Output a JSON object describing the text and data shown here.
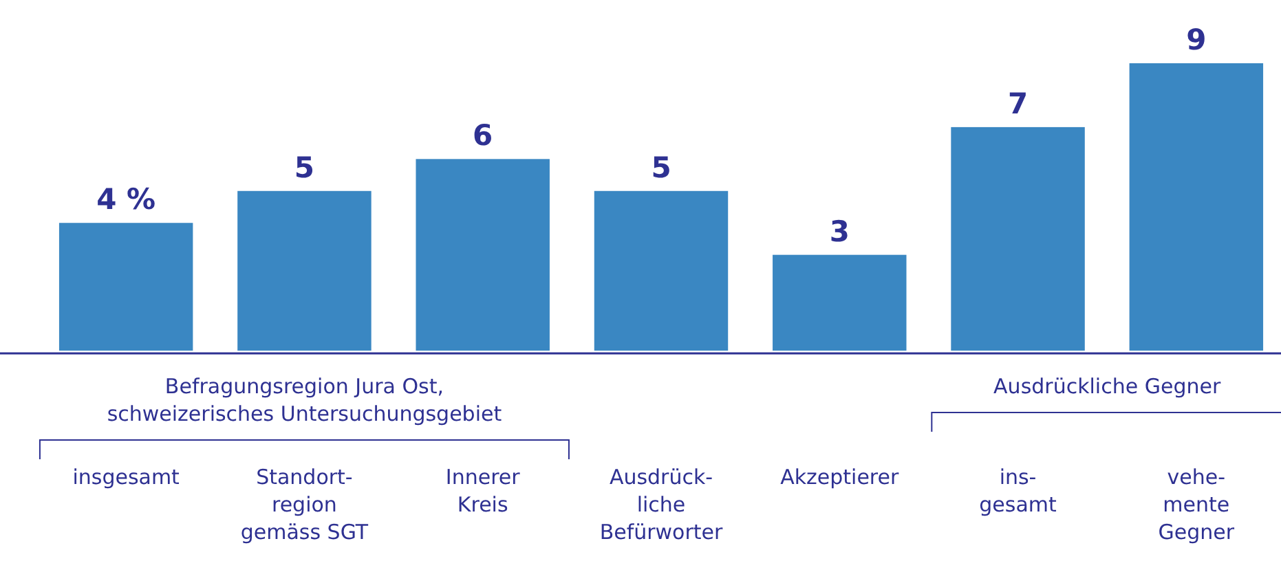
{
  "chart_data": {
    "type": "bar",
    "categories": [
      "insgesamt",
      "Standort-\nregion\ngemäss SGT",
      "Innerer\nKreis",
      "Ausdrück-\nliche\nBefürworter",
      "Akzeptierer",
      "ins-\ngesamt",
      "vehe-\nmente\nGegner"
    ],
    "values": [
      4,
      5,
      6,
      5,
      3,
      7,
      9
    ],
    "value_labels": [
      "4 %",
      "5",
      "6",
      "5",
      "3",
      "7",
      "9"
    ],
    "color": "#3a87c2",
    "ylim": [
      0,
      9
    ],
    "annotations": [
      "Befragungsregion Jura Ost,\nschweizerisches Untersuchungsgebiet",
      "Ausdrückliche Gegner"
    ]
  }
}
